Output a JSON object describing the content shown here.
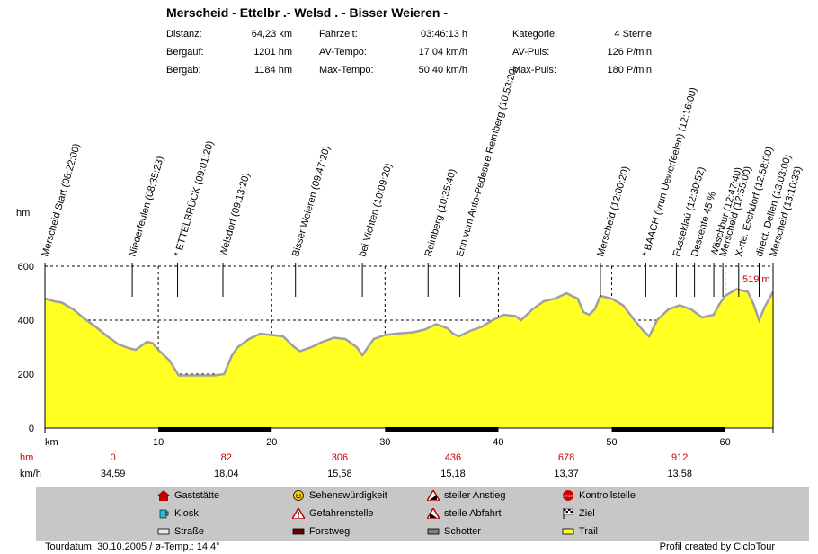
{
  "title": "Merscheid - Ettelbr .- Welsd . - Bisser Weieren -",
  "stats": [
    {
      "label": "Distanz:",
      "value": "64,23 km"
    },
    {
      "label": "Bergauf:",
      "value": "1201 hm"
    },
    {
      "label": "Bergab:",
      "value": "1184 hm"
    },
    {
      "label": "Fahrzeit:",
      "value": "03:46:13 h"
    },
    {
      "label": "AV-Tempo:",
      "value": "17,04 km/h"
    },
    {
      "label": "Max-Tempo:",
      "value": "50,40 km/h"
    },
    {
      "label": "Kategorie:",
      "value": "4 Sterne"
    },
    {
      "label": "AV-Puls:",
      "value": "126 P/min"
    },
    {
      "label": "Max-Puls:",
      "value": "180 P/min"
    }
  ],
  "colors": {
    "fill": "#ffff22",
    "outline": "#a0a0a0",
    "red": "#cc0000",
    "legend_bg": "#c7c7c7"
  },
  "chart_data": {
    "type": "area",
    "ylabel": "hm",
    "xlabel": "km",
    "xlim": [
      0,
      64.23
    ],
    "ylim": [
      0,
      600
    ],
    "yticks": [
      0,
      200,
      400,
      600
    ],
    "xticks": [
      10,
      20,
      30,
      40,
      50,
      60
    ],
    "grid": true,
    "max_label": "519 m",
    "profile": [
      [
        0,
        480
      ],
      [
        0.8,
        470
      ],
      [
        1.5,
        465
      ],
      [
        2.5,
        440
      ],
      [
        3.5,
        405
      ],
      [
        4.5,
        375
      ],
      [
        5.5,
        340
      ],
      [
        6.5,
        310
      ],
      [
        7.5,
        295
      ],
      [
        8,
        290
      ],
      [
        8.5,
        305
      ],
      [
        9,
        320
      ],
      [
        9.5,
        315
      ],
      [
        10,
        290
      ],
      [
        11,
        250
      ],
      [
        11.8,
        195
      ],
      [
        13,
        195
      ],
      [
        15,
        195
      ],
      [
        15.8,
        200
      ],
      [
        16.5,
        270
      ],
      [
        17,
        300
      ],
      [
        18,
        330
      ],
      [
        19,
        350
      ],
      [
        20,
        345
      ],
      [
        21,
        340
      ],
      [
        22,
        300
      ],
      [
        22.5,
        285
      ],
      [
        23.5,
        300
      ],
      [
        24.5,
        320
      ],
      [
        25.5,
        335
      ],
      [
        26.5,
        330
      ],
      [
        27.5,
        300
      ],
      [
        28,
        270
      ],
      [
        29,
        330
      ],
      [
        30,
        345
      ],
      [
        31,
        350
      ],
      [
        32.5,
        355
      ],
      [
        33.5,
        365
      ],
      [
        34.5,
        385
      ],
      [
        35.5,
        370
      ],
      [
        36,
        350
      ],
      [
        36.5,
        340
      ],
      [
        37.5,
        360
      ],
      [
        38.5,
        375
      ],
      [
        39.5,
        400
      ],
      [
        40.5,
        420
      ],
      [
        41.5,
        415
      ],
      [
        42,
        400
      ],
      [
        43,
        440
      ],
      [
        44,
        470
      ],
      [
        45,
        480
      ],
      [
        46,
        500
      ],
      [
        47,
        480
      ],
      [
        47.5,
        430
      ],
      [
        48,
        420
      ],
      [
        48.5,
        440
      ],
      [
        49,
        490
      ],
      [
        50,
        480
      ],
      [
        51,
        455
      ],
      [
        52,
        400
      ],
      [
        52.8,
        360
      ],
      [
        53.3,
        340
      ],
      [
        54,
        400
      ],
      [
        55,
        440
      ],
      [
        56,
        455
      ],
      [
        57,
        440
      ],
      [
        58,
        410
      ],
      [
        59,
        420
      ],
      [
        59.5,
        460
      ],
      [
        60,
        490
      ],
      [
        61,
        515
      ],
      [
        62,
        505
      ],
      [
        62.5,
        460
      ],
      [
        63,
        400
      ],
      [
        63.5,
        450
      ],
      [
        64.23,
        505
      ]
    ],
    "waypoints": [
      {
        "km": 0,
        "label": "Merscheid Start (08:22:00)"
      },
      {
        "km": 7.7,
        "label": "Niederfeulen (08:35:23)"
      },
      {
        "km": 11.7,
        "label": "* ETTELBRÜCK (09:01:20)"
      },
      {
        "km": 15.7,
        "label": "Welsdorf (09:13:20)"
      },
      {
        "km": 22.1,
        "label": "Bisser Weieren (09:47:20)"
      },
      {
        "km": 28.0,
        "label": "bei Vichten (10:09:20)"
      },
      {
        "km": 33.8,
        "label": "Reimberg (10:35:40)"
      },
      {
        "km": 36.6,
        "label": "Enn vum Auto-Pedestre Reimberg (10:53:20)"
      },
      {
        "km": 49.0,
        "label": "Merscheid (12:00:20)"
      },
      {
        "km": 53.0,
        "label": "* BAACH (vrun Uewerfeelen) (12:16:00)"
      },
      {
        "km": 55.7,
        "label": "Fusseklaú (12:30:52)"
      },
      {
        "km": 57.3,
        "label": "Descente 45 %"
      },
      {
        "km": 59.0,
        "label": "Wäschbur (12:47:40)"
      },
      {
        "km": 59.8,
        "label": "Merscheid (12:55:00)"
      },
      {
        "km": 61.2,
        "label": "X-rte. Eschdorf (12:58:00)"
      },
      {
        "km": 63.0,
        "label": "direct. Dellen (13:03:00)"
      },
      {
        "km": 64.23,
        "label": "Merscheid (13:10:33)"
      }
    ],
    "road_segments": [
      [
        10,
        20
      ],
      [
        30,
        40
      ],
      [
        50,
        60
      ]
    ],
    "hm_label": "hm",
    "kmh_label": "km/h",
    "sections": [
      {
        "km": 6,
        "hm": "0",
        "speed": "34,59"
      },
      {
        "km": 16,
        "hm": "82",
        "speed": "18,04"
      },
      {
        "km": 26,
        "hm": "306",
        "speed": "15,58"
      },
      {
        "km": 36,
        "hm": "436",
        "speed": "15,18"
      },
      {
        "km": 46,
        "hm": "678",
        "speed": "13,37"
      },
      {
        "km": 56,
        "hm": "912",
        "speed": "13,58"
      }
    ]
  },
  "legend": [
    {
      "icon": "house-icon",
      "label": "Gaststätte"
    },
    {
      "icon": "smiley-icon",
      "label": "Sehenswürdigkeit"
    },
    {
      "icon": "climb-icon",
      "label": "steiler Anstieg"
    },
    {
      "icon": "stop-icon",
      "label": "Kontrollstelle"
    },
    {
      "icon": "cup-icon",
      "label": "Kiosk"
    },
    {
      "icon": "warning-icon",
      "label": "Gefahrenstelle"
    },
    {
      "icon": "descent-icon",
      "label": "steile Abfahrt"
    },
    {
      "icon": "flag-icon",
      "label": "Ziel"
    },
    {
      "icon": "road-swatch-icon",
      "label": "Straße"
    },
    {
      "icon": "forest-swatch-icon",
      "label": "Forstweg"
    },
    {
      "icon": "gravel-swatch-icon",
      "label": "Schotter"
    },
    {
      "icon": "trail-swatch-icon",
      "label": "Trail"
    }
  ],
  "footer": {
    "left": "Tourdatum: 30.10.2005  /  ø-Temp.: 14,4°",
    "right": "Profil created by CicloTour"
  }
}
